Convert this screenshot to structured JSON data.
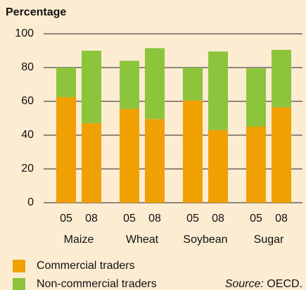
{
  "chart_data": {
    "type": "bar",
    "stacked": true,
    "ylabel": "Percentage",
    "categories": [
      "05",
      "08",
      "05",
      "08",
      "05",
      "08",
      "05",
      "08"
    ],
    "groups": [
      "Maize",
      "Wheat",
      "Soybean",
      "Sugar"
    ],
    "series": [
      {
        "name": "Commercial traders",
        "color": "#f0a000",
        "values": [
          62.5,
          47,
          55.5,
          49.5,
          60.5,
          43,
          45,
          56.5
        ]
      },
      {
        "name": "Non-commercial traders",
        "color": "#8cc43c",
        "values": [
          17.5,
          43,
          28.5,
          42,
          19.5,
          46.5,
          34.5,
          34
        ]
      }
    ],
    "ylim": [
      0,
      100
    ],
    "yticks": [
      0,
      20,
      40,
      60,
      80,
      100
    ],
    "grid": true,
    "source": {
      "label": "Source:",
      "text": "OECD."
    }
  }
}
